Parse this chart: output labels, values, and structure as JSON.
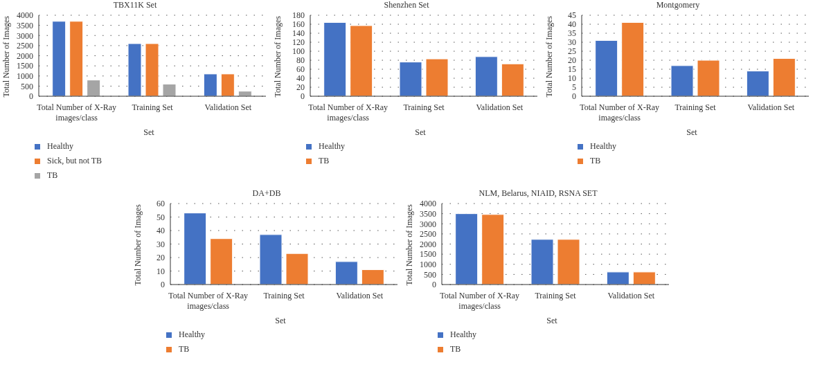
{
  "chart_data": [
    {
      "type": "bar",
      "title": "TBX11K Set",
      "xlabel": "Set",
      "ylabel": "Total Number of Images",
      "categories": [
        "Total Number of X-Ray images/class",
        "Training Set",
        "Validation Set"
      ],
      "series": [
        {
          "name": "Healthy",
          "color": "#4472c4",
          "values": [
            3700,
            2600,
            1100
          ]
        },
        {
          "name": "Sick, but not TB",
          "color": "#ed7d31",
          "values": [
            3700,
            2600,
            1100
          ]
        },
        {
          "name": "TB",
          "color": "#a5a5a5",
          "values": [
            800,
            600,
            250
          ]
        }
      ],
      "ylim": [
        0,
        4000
      ],
      "yticks": [
        0,
        500,
        1000,
        1500,
        2000,
        2500,
        3000,
        3500,
        4000
      ],
      "grid": "y",
      "legend": "bottom left"
    },
    {
      "type": "bar",
      "title": "Shenzhen Set",
      "xlabel": "Set",
      "ylabel": "Total Number of Images",
      "categories": [
        "Total Number of X-Ray images/class",
        "Training Set",
        "Validation Set"
      ],
      "series": [
        {
          "name": "Healthy",
          "color": "#4472c4",
          "values": [
            164,
            76,
            88
          ]
        },
        {
          "name": "TB",
          "color": "#ed7d31",
          "values": [
            157,
            83,
            72
          ]
        }
      ],
      "ylim": [
        0,
        180
      ],
      "yticks": [
        0,
        20,
        40,
        60,
        80,
        100,
        120,
        140,
        160,
        180
      ],
      "grid": "y",
      "legend": "bottom left"
    },
    {
      "type": "bar",
      "title": "Montgomery",
      "xlabel": "Set",
      "ylabel": "Total Number of Images",
      "categories": [
        "Total Number of X-Ray images/class",
        "Training Set",
        "Validation Set"
      ],
      "series": [
        {
          "name": "Healthy",
          "color": "#4472c4",
          "values": [
            31,
            17,
            14
          ]
        },
        {
          "name": "TB",
          "color": "#ed7d31",
          "values": [
            41,
            20,
            21
          ]
        }
      ],
      "ylim": [
        0,
        45
      ],
      "yticks": [
        0,
        5,
        10,
        15,
        20,
        25,
        30,
        35,
        40,
        45
      ],
      "grid": "y",
      "legend": "bottom left"
    },
    {
      "type": "bar",
      "title": "DA+DB",
      "xlabel": "Set",
      "ylabel": "Total Number of Images",
      "categories": [
        "Total Number of X-Ray images/class",
        "Training Set",
        "Validation Set"
      ],
      "series": [
        {
          "name": "Healthy",
          "color": "#4472c4",
          "values": [
            53,
            37,
            17
          ]
        },
        {
          "name": "TB",
          "color": "#ed7d31",
          "values": [
            34,
            23,
            11
          ]
        }
      ],
      "ylim": [
        0,
        60
      ],
      "yticks": [
        0,
        10,
        20,
        30,
        40,
        50,
        60
      ],
      "grid": "y",
      "legend": "bottom left"
    },
    {
      "type": "bar",
      "title": "NLM, Belarus, NIAID, RSNA SET",
      "xlabel": "Set",
      "ylabel": "Total Number of Images",
      "categories": [
        "Total Number of X-Ray images/class",
        "Training Set",
        "Validation Set"
      ],
      "series": [
        {
          "name": "Healthy",
          "color": "#4472c4",
          "values": [
            3500,
            2230,
            620
          ]
        },
        {
          "name": "TB",
          "color": "#ed7d31",
          "values": [
            3460,
            2230,
            620
          ]
        }
      ],
      "ylim": [
        0,
        4000
      ],
      "yticks": [
        0,
        500,
        1000,
        1500,
        2000,
        2500,
        3000,
        3500,
        4000
      ],
      "grid": "y",
      "legend": "bottom left"
    }
  ]
}
